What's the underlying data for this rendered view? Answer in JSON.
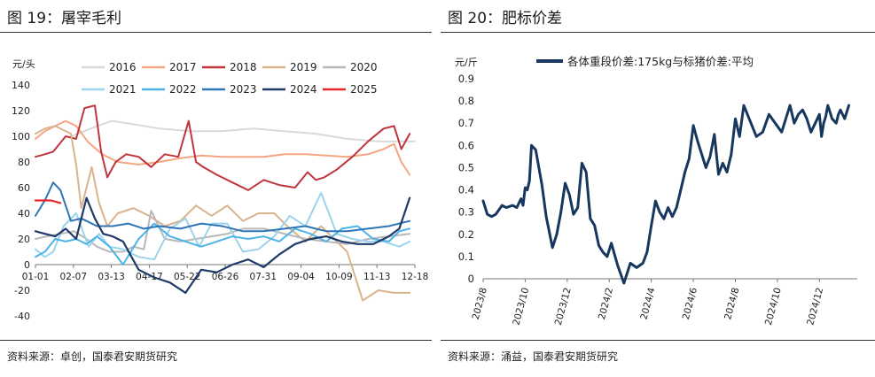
{
  "left": {
    "figure_title": "图 19：屠宰毛利",
    "source": "资料来源：卓创，国泰君安期货研究"
  },
  "right": {
    "figure_title": "图 20：肥标价差",
    "source": "资料来源：涌益，国泰君安期货研究"
  },
  "chart_data": [
    {
      "type": "line",
      "title": "",
      "xlabel": "",
      "ylabel": "元/头",
      "ylim": [
        -40,
        140
      ],
      "yticks": [
        -40,
        -20,
        0,
        20,
        40,
        60,
        80,
        100,
        120,
        140
      ],
      "x_tick_labels": [
        "01-01",
        "02-07",
        "03-13",
        "04-17",
        "05-22",
        "06-26",
        "07-31",
        "09-04",
        "10-09",
        "11-13",
        "12-18"
      ],
      "legend_position": "top",
      "grid": false,
      "series": [
        {
          "name": "2016",
          "color": "#d9d9d9",
          "x": [
            35,
            48,
            60,
            75,
            90,
            105,
            120,
            150,
            180,
            210,
            240,
            270,
            300,
            330,
            365
          ],
          "values": [
            100,
            104,
            108,
            112,
            110,
            108,
            106,
            104,
            104,
            106,
            104,
            102,
            98,
            96,
            96
          ]
        },
        {
          "name": "2017",
          "color": "#f4a582",
          "x": [
            1,
            10,
            20,
            30,
            40,
            52,
            65,
            80,
            100,
            120,
            140,
            160,
            180,
            200,
            220,
            240,
            260,
            280,
            300,
            320,
            335,
            345,
            352,
            360
          ],
          "values": [
            98,
            104,
            108,
            112,
            108,
            95,
            86,
            80,
            78,
            80,
            83,
            85,
            84,
            84,
            84,
            86,
            86,
            85,
            84,
            86,
            90,
            94,
            80,
            70
          ]
        },
        {
          "name": "2018",
          "color": "#c0353c",
          "x": [
            1,
            10,
            18,
            30,
            40,
            48,
            58,
            64,
            70,
            78,
            88,
            100,
            112,
            125,
            138,
            148,
            155,
            162,
            175,
            190,
            205,
            220,
            235,
            250,
            262,
            270,
            278,
            290,
            305,
            320,
            335,
            345,
            352,
            360
          ],
          "values": [
            84,
            86,
            88,
            100,
            98,
            122,
            124,
            88,
            68,
            80,
            86,
            84,
            76,
            86,
            84,
            112,
            80,
            76,
            70,
            64,
            58,
            66,
            62,
            60,
            72,
            66,
            68,
            74,
            84,
            96,
            106,
            108,
            90,
            102
          ]
        },
        {
          "name": "2019",
          "color": "#d9b38c",
          "x": [
            1,
            10,
            20,
            35,
            40,
            45,
            55,
            62,
            70,
            80,
            95,
            110,
            125,
            140,
            155,
            170,
            185,
            200,
            215,
            230,
            245,
            260,
            275,
            285,
            300,
            315,
            330,
            345,
            360
          ],
          "values": [
            102,
            106,
            108,
            102,
            78,
            44,
            76,
            48,
            30,
            40,
            44,
            38,
            30,
            34,
            46,
            38,
            46,
            34,
            40,
            40,
            28,
            18,
            30,
            22,
            10,
            -28,
            -20,
            -22,
            -22
          ]
        },
        {
          "name": "2020",
          "color": "#b8b8b8",
          "x": [
            1,
            12,
            25,
            38,
            50,
            60,
            72,
            85,
            95,
            105,
            112,
            125,
            140,
            155,
            170,
            185,
            200,
            220,
            240,
            260,
            280,
            300,
            320,
            340,
            360
          ],
          "values": [
            20,
            22,
            24,
            26,
            20,
            14,
            10,
            10,
            14,
            12,
            42,
            20,
            18,
            20,
            22,
            24,
            28,
            28,
            24,
            20,
            18,
            16,
            20,
            22,
            24
          ]
        },
        {
          "name": "2021",
          "color": "#9bd4ec",
          "x": [
            1,
            10,
            18,
            28,
            40,
            52,
            62,
            72,
            85,
            100,
            115,
            130,
            145,
            158,
            170,
            185,
            200,
            215,
            230,
            245,
            260,
            275,
            290,
            305,
            320,
            335,
            350,
            360
          ],
          "values": [
            12,
            6,
            10,
            30,
            40,
            14,
            24,
            14,
            12,
            6,
            4,
            28,
            36,
            14,
            32,
            32,
            10,
            12,
            22,
            38,
            30,
            56,
            24,
            20,
            18,
            18,
            14,
            18
          ]
        },
        {
          "name": "2022",
          "color": "#4db3e6",
          "x": [
            1,
            10,
            20,
            30,
            40,
            50,
            60,
            72,
            85,
            100,
            115,
            130,
            145,
            160,
            175,
            190,
            205,
            220,
            235,
            250,
            265,
            280,
            295,
            310,
            325,
            340,
            350,
            360
          ],
          "values": [
            6,
            10,
            20,
            18,
            20,
            16,
            22,
            14,
            0,
            20,
            32,
            22,
            18,
            14,
            18,
            22,
            20,
            22,
            18,
            28,
            24,
            18,
            28,
            30,
            20,
            18,
            26,
            28
          ]
        },
        {
          "name": "2023",
          "color": "#2e75b6",
          "x": [
            1,
            10,
            18,
            25,
            35,
            45,
            60,
            75,
            90,
            105,
            120,
            140,
            160,
            180,
            200,
            220,
            240,
            260,
            280,
            300,
            320,
            340,
            360
          ],
          "values": [
            38,
            50,
            64,
            58,
            34,
            36,
            30,
            30,
            32,
            28,
            30,
            28,
            32,
            30,
            26,
            26,
            28,
            30,
            26,
            26,
            28,
            30,
            34
          ]
        },
        {
          "name": "2024",
          "color": "#1f3a68",
          "x": [
            1,
            10,
            20,
            30,
            40,
            50,
            58,
            66,
            75,
            85,
            100,
            115,
            130,
            145,
            160,
            175,
            190,
            205,
            220,
            235,
            250,
            265,
            280,
            295,
            310,
            325,
            340,
            350,
            360
          ],
          "values": [
            26,
            24,
            22,
            28,
            20,
            52,
            36,
            24,
            22,
            18,
            -4,
            -10,
            -14,
            -22,
            -4,
            -6,
            0,
            4,
            -2,
            8,
            16,
            20,
            22,
            18,
            16,
            16,
            22,
            28,
            52
          ]
        },
        {
          "name": "2025",
          "color": "#e8262a",
          "x": [
            1,
            8,
            16,
            25
          ],
          "values": [
            50,
            50,
            50,
            48
          ]
        }
      ]
    },
    {
      "type": "line",
      "title": "",
      "xlabel": "",
      "ylabel": "元/斤",
      "ylim": [
        0,
        0.9
      ],
      "yticks": [
        0,
        0.1,
        0.2,
        0.3,
        0.4,
        0.5,
        0.6,
        0.7,
        0.8,
        0.9
      ],
      "x_tick_labels": [
        "2023/8",
        "2023/10",
        "2023/12",
        "2024/2",
        "2024/4",
        "2024/6",
        "2024/8",
        "2024/10",
        "2024/12"
      ],
      "legend_position": "top",
      "grid": false,
      "series": [
        {
          "name": "各体重段价差:175kg与标猪价差:平均",
          "color": "#17375e",
          "x": [
            0.0,
            0.1,
            0.2,
            0.3,
            0.45,
            0.55,
            0.7,
            0.8,
            0.9,
            0.95,
            1.0,
            1.05,
            1.1,
            1.15,
            1.25,
            1.4,
            1.5,
            1.65,
            1.75,
            1.85,
            1.95,
            2.05,
            2.15,
            2.25,
            2.35,
            2.45,
            2.55,
            2.65,
            2.75,
            2.85,
            2.95,
            3.05,
            3.2,
            3.35,
            3.5,
            3.65,
            3.8,
            3.9,
            4.0,
            4.1,
            4.2,
            4.3,
            4.4,
            4.5,
            4.6,
            4.7,
            4.8,
            4.9,
            5.0,
            5.1,
            5.2,
            5.3,
            5.4,
            5.5,
            5.6,
            5.7,
            5.8,
            5.9,
            6.0,
            6.1,
            6.2,
            6.35,
            6.5,
            6.65,
            6.8,
            6.95,
            7.1,
            7.2,
            7.3,
            7.4,
            7.5,
            7.6,
            7.7,
            7.8,
            7.9,
            8.0,
            8.05,
            8.1,
            8.15,
            8.2,
            8.3,
            8.4,
            8.45,
            8.5,
            8.6,
            8.7
          ],
          "values": [
            0.35,
            0.29,
            0.28,
            0.29,
            0.33,
            0.32,
            0.33,
            0.32,
            0.36,
            0.33,
            0.41,
            0.4,
            0.44,
            0.6,
            0.58,
            0.42,
            0.28,
            0.14,
            0.2,
            0.3,
            0.43,
            0.38,
            0.29,
            0.32,
            0.52,
            0.48,
            0.27,
            0.24,
            0.15,
            0.12,
            0.1,
            0.16,
            0.06,
            -0.02,
            0.07,
            0.05,
            0.07,
            0.12,
            0.24,
            0.35,
            0.3,
            0.27,
            0.32,
            0.28,
            0.32,
            0.4,
            0.48,
            0.54,
            0.69,
            0.62,
            0.56,
            0.5,
            0.55,
            0.65,
            0.47,
            0.52,
            0.48,
            0.56,
            0.72,
            0.64,
            0.78,
            0.71,
            0.64,
            0.66,
            0.74,
            0.7,
            0.66,
            0.72,
            0.78,
            0.7,
            0.74,
            0.76,
            0.72,
            0.66,
            0.7,
            0.74,
            0.64,
            0.7,
            0.73,
            0.78,
            0.72,
            0.7,
            0.74,
            0.76,
            0.72,
            0.78
          ]
        }
      ]
    }
  ]
}
